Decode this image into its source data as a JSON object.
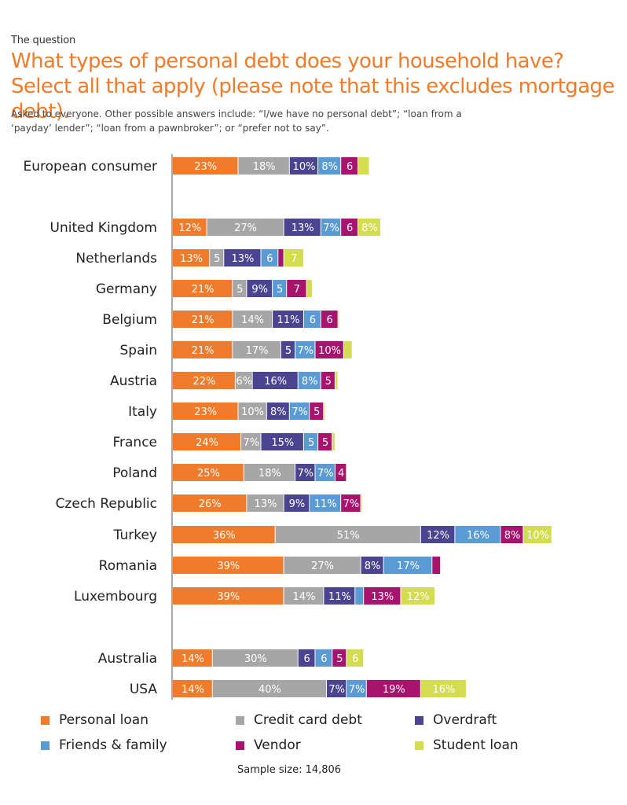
{
  "header": {
    "kicker": "The question",
    "title": "What types of personal debt does your household have? Select all that apply (please note that this excludes mortgage debt).",
    "subtitle": "Asked to everyone. Other possible answers include: “I/we have no personal debt”; “loan from a ‘payday’ lender”; “loan from a pawnbroker”; or “prefer not to say”."
  },
  "footer": {
    "sample_size": "Sample size: 14,806"
  },
  "chart_data": {
    "type": "bar",
    "orientation": "horizontal",
    "stacked": true,
    "unit": "%",
    "categories": [
      "European consumer",
      "United Kingdom",
      "Netherlands",
      "Germany",
      "Belgium",
      "Spain",
      "Austria",
      "Italy",
      "France",
      "Poland",
      "Czech Republic",
      "Turkey",
      "Romania",
      "Luxembourg",
      "Australia",
      "USA"
    ],
    "groups": [
      [
        "European consumer"
      ],
      [
        "United Kingdom",
        "Netherlands",
        "Germany",
        "Belgium",
        "Spain",
        "Austria",
        "Italy",
        "France",
        "Poland",
        "Czech Republic",
        "Turkey",
        "Romania",
        "Luxembourg"
      ],
      [
        "Australia",
        "USA"
      ]
    ],
    "series": [
      {
        "name": "Personal loan",
        "color": "#f07c2b",
        "values": [
          23,
          12,
          13,
          21,
          21,
          21,
          22,
          23,
          24,
          25,
          26,
          36,
          39,
          39,
          14,
          14
        ],
        "labels": [
          "23%",
          "12%",
          "13%",
          "21%",
          "21%",
          "21%",
          "22%",
          "23%",
          "24%",
          "25%",
          "26%",
          "36%",
          "39%",
          "39%",
          "14%",
          "14%"
        ]
      },
      {
        "name": "Credit card debt",
        "color": "#a6a6a6",
        "values": [
          18,
          27,
          5,
          5,
          14,
          17,
          6,
          10,
          7,
          18,
          13,
          51,
          27,
          14,
          30,
          40
        ],
        "labels": [
          "18%",
          "27%",
          "5",
          "5",
          "14%",
          "17%",
          "6%",
          "10%",
          "7%",
          "18%",
          "13%",
          "51%",
          "27%",
          "14%",
          "30%",
          "40%"
        ]
      },
      {
        "name": "Overdraft",
        "color": "#4b4591",
        "values": [
          10,
          13,
          13,
          9,
          11,
          5,
          16,
          8,
          15,
          7,
          9,
          12,
          8,
          11,
          6,
          7
        ],
        "labels": [
          "10%",
          "13%",
          "13%",
          "9%",
          "11%",
          "5",
          "16%",
          "8%",
          "15%",
          "7%",
          "9%",
          "12%",
          "8%",
          "11%",
          "6",
          "7%"
        ]
      },
      {
        "name": "Friends & family",
        "color": "#5b9bd5",
        "values": [
          8,
          7,
          6,
          5,
          6,
          7,
          8,
          7,
          5,
          7,
          11,
          16,
          17,
          3,
          6,
          7
        ],
        "labels": [
          "8%",
          "7%",
          "6",
          "5",
          "6",
          "7%",
          "8%",
          "7%",
          "5",
          "7%",
          "11%",
          "16%",
          "17%",
          "",
          "6",
          "7%"
        ]
      },
      {
        "name": "Vendor",
        "color": "#a8136e",
        "values": [
          6,
          6,
          2,
          7,
          6,
          10,
          5,
          5,
          5,
          4,
          7,
          8,
          3,
          13,
          5,
          19
        ],
        "labels": [
          "6",
          "6",
          "",
          "7",
          "6",
          "10%",
          "5",
          "5",
          "5",
          "4",
          "7%",
          "8%",
          "",
          "13%",
          "5",
          "19%"
        ]
      },
      {
        "name": "Student loan",
        "color": "#d4dd4f",
        "values": [
          4,
          8,
          7,
          2,
          0.5,
          3,
          1,
          0.5,
          1,
          0,
          0.5,
          10,
          0,
          12,
          6,
          16
        ],
        "labels": [
          "",
          "8%",
          "7",
          "",
          "",
          "",
          "",
          "",
          "",
          "",
          "",
          "10%",
          "",
          "12%",
          "6",
          "16%"
        ]
      }
    ]
  },
  "legend": {
    "items": [
      {
        "label": "Personal loan",
        "color": "#f07c2b"
      },
      {
        "label": "Credit card debt",
        "color": "#a6a6a6"
      },
      {
        "label": "Overdraft",
        "color": "#4b4591"
      },
      {
        "label": "Friends & family",
        "color": "#5b9bd5"
      },
      {
        "label": "Vendor",
        "color": "#a8136e"
      },
      {
        "label": "Student loan",
        "color": "#d4dd4f"
      }
    ]
  }
}
